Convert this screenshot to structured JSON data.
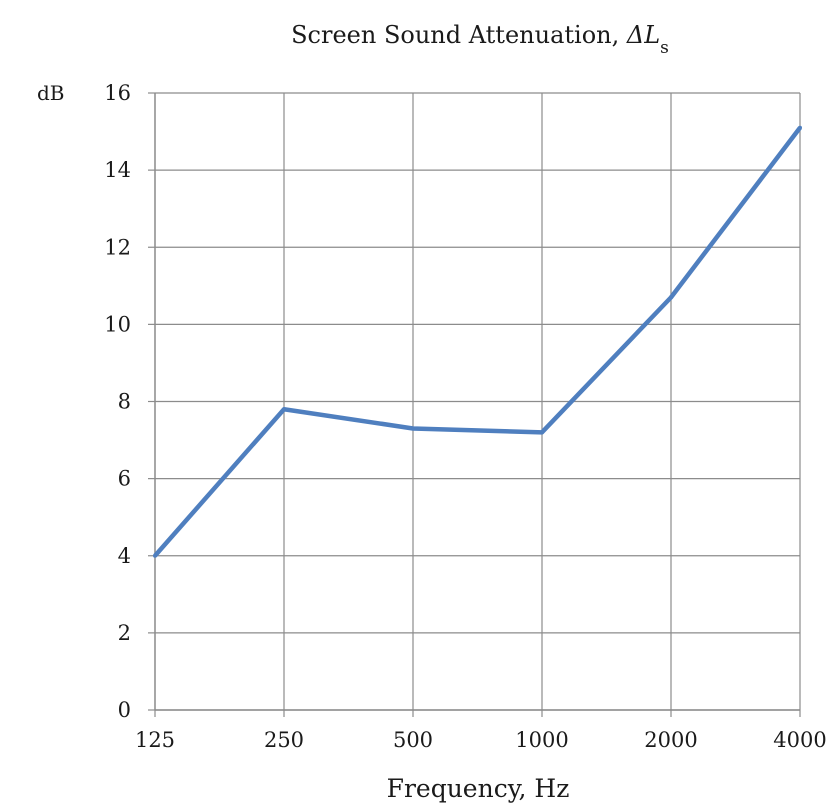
{
  "chart_data": {
    "type": "line",
    "title": "Screen Sound Attenuation, ",
    "title_symbol": "ΔL",
    "title_subscript": "s",
    "xlabel": "Frequency, Hz",
    "ylabel": "dB",
    "categories": [
      "125",
      "250",
      "500",
      "1000",
      "2000",
      "4000"
    ],
    "series": [
      {
        "values": [
          4.0,
          7.8,
          7.3,
          7.2,
          10.7,
          15.1
        ],
        "color": "#4f7fbf"
      }
    ],
    "ylim": [
      0,
      16
    ],
    "yticks": [
      0,
      2,
      4,
      6,
      8,
      10,
      12,
      14,
      16
    ],
    "grid": true,
    "legend": "none"
  }
}
